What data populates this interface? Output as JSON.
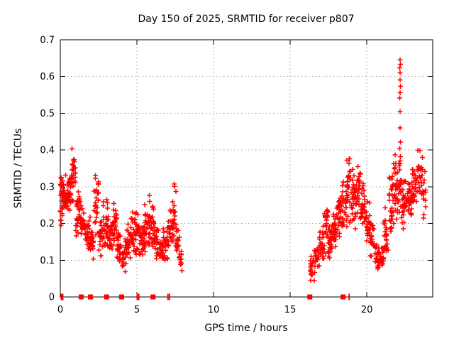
{
  "window": {
    "background": "#ffffff"
  },
  "chart_data": {
    "type": "scatter",
    "title": "Day 150 of 2025, SRMTID for receiver p807",
    "xlabel": "GPS time / hours",
    "ylabel": "SRMTID / TECUs",
    "xlim": [
      0,
      24.3
    ],
    "ylim": [
      0,
      0.7
    ],
    "xticks": [
      0,
      5,
      10,
      15,
      20
    ],
    "yticks": [
      0,
      0.1,
      0.2,
      0.3,
      0.4,
      0.5,
      0.6,
      0.7
    ],
    "grid": {
      "show": true,
      "style": "dotted",
      "color": "#a0a0a0",
      "x_lines": [
        5,
        10,
        15,
        20
      ],
      "y_lines": [
        0.1,
        0.2,
        0.3,
        0.4,
        0.5,
        0.6
      ]
    },
    "axis_color": "#000000",
    "legend": "none",
    "marker": {
      "glyph": "plus",
      "size": 7,
      "color": "#ff0000"
    },
    "data_gap_hours": [
      8.0,
      16.3
    ],
    "random_seed": 42,
    "series": [
      {
        "name": "SRMTID",
        "color": "#ff0000",
        "density_bands": [
          [
            0.0,
            0.15,
            0.17,
            0.375,
            22
          ],
          [
            0.15,
            0.45,
            0.2,
            0.34,
            30
          ],
          [
            0.45,
            0.7,
            0.23,
            0.33,
            26
          ],
          [
            0.7,
            1.0,
            0.25,
            0.412,
            28
          ],
          [
            1.0,
            1.3,
            0.16,
            0.3,
            26
          ],
          [
            1.3,
            1.6,
            0.14,
            0.26,
            24
          ],
          [
            1.6,
            1.95,
            0.11,
            0.22,
            26
          ],
          [
            1.95,
            2.2,
            0.1,
            0.2,
            20
          ],
          [
            2.2,
            2.5,
            0.15,
            0.37,
            26
          ],
          [
            2.5,
            2.8,
            0.1,
            0.22,
            24
          ],
          [
            2.8,
            3.1,
            0.11,
            0.28,
            26
          ],
          [
            3.1,
            3.4,
            0.1,
            0.24,
            24
          ],
          [
            3.4,
            3.7,
            0.11,
            0.26,
            26
          ],
          [
            3.7,
            4.0,
            0.08,
            0.18,
            24
          ],
          [
            4.0,
            4.3,
            0.05,
            0.17,
            22
          ],
          [
            4.3,
            4.6,
            0.09,
            0.21,
            24
          ],
          [
            4.6,
            4.9,
            0.1,
            0.24,
            24
          ],
          [
            4.9,
            5.2,
            0.11,
            0.26,
            26
          ],
          [
            5.2,
            5.5,
            0.1,
            0.22,
            24
          ],
          [
            5.5,
            5.8,
            0.11,
            0.27,
            26
          ],
          [
            5.8,
            6.1,
            0.11,
            0.3,
            26
          ],
          [
            6.1,
            6.4,
            0.09,
            0.22,
            24
          ],
          [
            6.4,
            6.7,
            0.08,
            0.18,
            22
          ],
          [
            6.7,
            7.0,
            0.09,
            0.2,
            22
          ],
          [
            7.0,
            7.3,
            0.11,
            0.26,
            24
          ],
          [
            7.3,
            7.55,
            0.14,
            0.31,
            22
          ],
          [
            7.55,
            7.8,
            0.08,
            0.2,
            18
          ],
          [
            7.8,
            7.95,
            0.06,
            0.13,
            10
          ],
          [
            16.3,
            16.6,
            0.04,
            0.12,
            18
          ],
          [
            16.6,
            16.9,
            0.06,
            0.15,
            20
          ],
          [
            16.9,
            17.2,
            0.08,
            0.2,
            22
          ],
          [
            17.2,
            17.5,
            0.1,
            0.28,
            24
          ],
          [
            17.5,
            17.8,
            0.1,
            0.22,
            24
          ],
          [
            17.8,
            18.1,
            0.12,
            0.25,
            24
          ],
          [
            18.1,
            18.4,
            0.14,
            0.3,
            26
          ],
          [
            18.4,
            18.7,
            0.17,
            0.35,
            26
          ],
          [
            18.7,
            19.0,
            0.19,
            0.4,
            28
          ],
          [
            19.0,
            19.3,
            0.18,
            0.35,
            26
          ],
          [
            19.3,
            19.6,
            0.19,
            0.37,
            26
          ],
          [
            19.6,
            19.9,
            0.15,
            0.32,
            24
          ],
          [
            19.9,
            20.2,
            0.12,
            0.28,
            24
          ],
          [
            20.2,
            20.5,
            0.1,
            0.22,
            22
          ],
          [
            20.5,
            20.8,
            0.07,
            0.16,
            20
          ],
          [
            20.8,
            21.1,
            0.07,
            0.15,
            20
          ],
          [
            21.1,
            21.4,
            0.1,
            0.25,
            22
          ],
          [
            21.4,
            21.7,
            0.14,
            0.38,
            24
          ],
          [
            21.7,
            22.0,
            0.18,
            0.4,
            26
          ],
          [
            22.0,
            22.3,
            0.2,
            0.4,
            28
          ],
          [
            22.3,
            22.6,
            0.17,
            0.34,
            24
          ],
          [
            22.6,
            22.95,
            0.2,
            0.32,
            26
          ],
          [
            22.95,
            23.25,
            0.21,
            0.37,
            24
          ],
          [
            23.25,
            23.6,
            0.24,
            0.41,
            24
          ],
          [
            23.6,
            23.85,
            0.2,
            0.4,
            16
          ]
        ],
        "spike_points": [
          [
            22.17,
            0.646
          ],
          [
            22.19,
            0.633
          ],
          [
            22.15,
            0.624
          ],
          [
            22.18,
            0.61
          ],
          [
            22.16,
            0.591
          ],
          [
            22.19,
            0.573
          ],
          [
            22.17,
            0.556
          ],
          [
            22.15,
            0.541
          ],
          [
            22.18,
            0.505
          ],
          [
            22.16,
            0.46
          ],
          [
            22.2,
            0.422
          ],
          [
            22.14,
            0.404
          ]
        ],
        "baseline_squares_x": [
          1.36,
          1.97,
          3.02,
          4.0,
          6.05,
          16.28,
          18.45
        ],
        "baseline_ticks_x": [
          0.07,
          0.16,
          5.02,
          5.12,
          7.02,
          7.12,
          18.85
        ]
      }
    ]
  }
}
